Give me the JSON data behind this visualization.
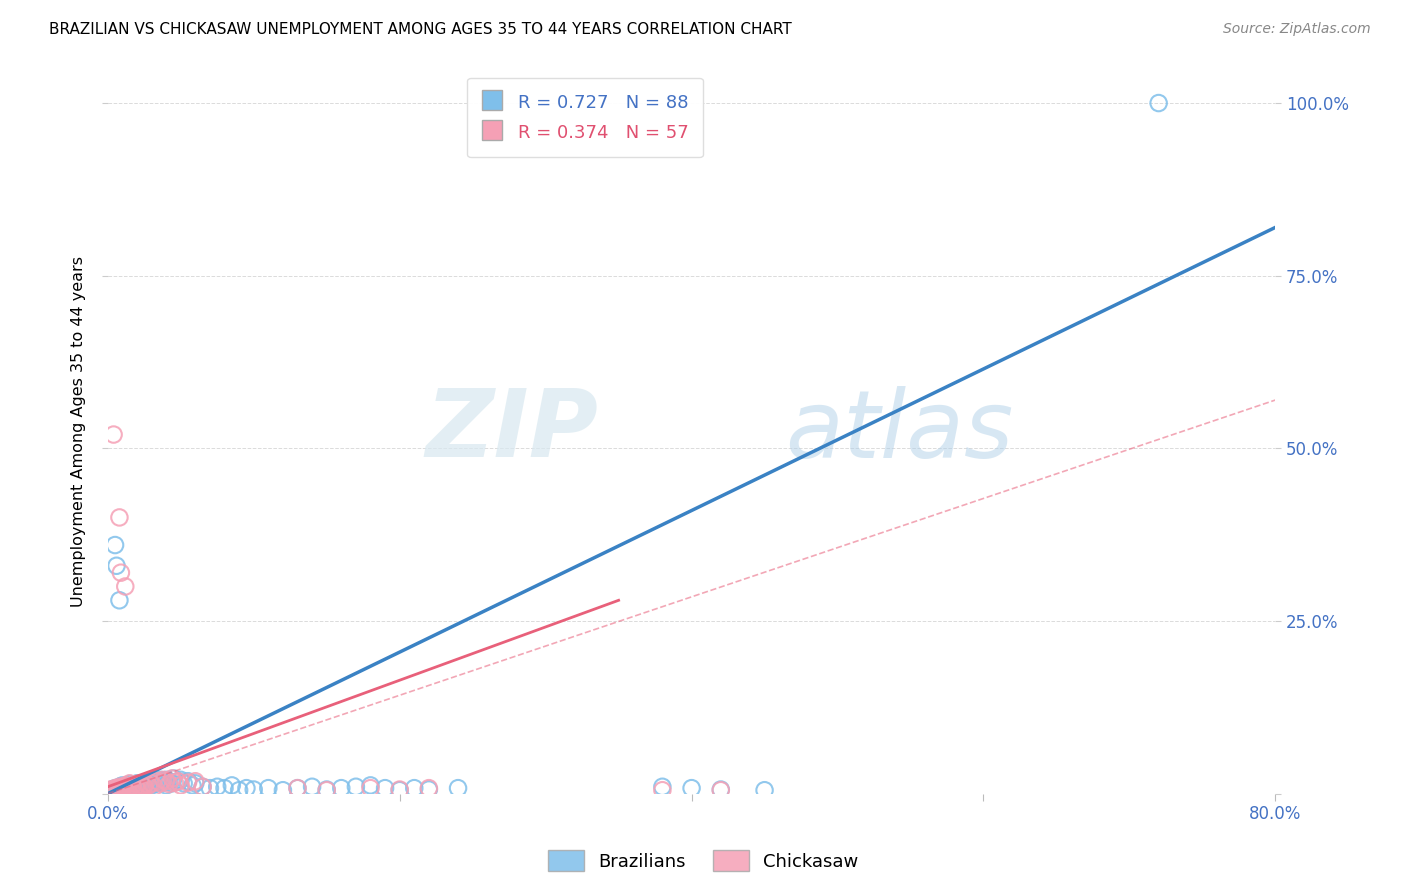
{
  "title": "BRAZILIAN VS CHICKASAW UNEMPLOYMENT AMONG AGES 35 TO 44 YEARS CORRELATION CHART",
  "source": "Source: ZipAtlas.com",
  "ylabel": "Unemployment Among Ages 35 to 44 years",
  "xlim": [
    0.0,
    0.8
  ],
  "ylim": [
    0.0,
    1.05
  ],
  "xtick_positions": [
    0.0,
    0.2,
    0.4,
    0.6,
    0.8
  ],
  "xticklabels": [
    "0.0%",
    "",
    "",
    "",
    "80.0%"
  ],
  "ytick_positions": [
    0.0,
    0.25,
    0.5,
    0.75,
    1.0
  ],
  "yticklabels_right": [
    "",
    "25.0%",
    "50.0%",
    "75.0%",
    "100.0%"
  ],
  "blue_color": "#7fbfea",
  "pink_color": "#f5a0b5",
  "blue_line_color": "#3a82c4",
  "pink_line_color": "#e8607a",
  "legend_R_blue": "R = 0.727",
  "legend_N_blue": "N = 88",
  "legend_R_pink": "R = 0.374",
  "legend_N_pink": "N = 57",
  "legend_text_blue": "#4472c4",
  "legend_text_pink": "#e05070",
  "axis_tick_color": "#4472c4",
  "watermark_zip": "ZIP",
  "watermark_atlas": "atlas",
  "blue_line": [
    [
      0.0,
      0.0
    ],
    [
      0.8,
      0.82
    ]
  ],
  "pink_line_solid": [
    [
      0.0,
      0.01
    ],
    [
      0.35,
      0.28
    ]
  ],
  "pink_line_dashed": [
    [
      0.0,
      0.0
    ],
    [
      0.8,
      0.57
    ]
  ],
  "blue_scatter": [
    [
      0.001,
      0.005
    ],
    [
      0.002,
      0.003
    ],
    [
      0.003,
      0.006
    ],
    [
      0.004,
      0.004
    ],
    [
      0.005,
      0.005
    ],
    [
      0.005,
      0.008
    ],
    [
      0.006,
      0.003
    ],
    [
      0.007,
      0.005
    ],
    [
      0.007,
      0.007
    ],
    [
      0.008,
      0.004
    ],
    [
      0.008,
      0.008
    ],
    [
      0.008,
      0.01
    ],
    [
      0.009,
      0.005
    ],
    [
      0.009,
      0.01
    ],
    [
      0.01,
      0.005
    ],
    [
      0.01,
      0.008
    ],
    [
      0.01,
      0.012
    ],
    [
      0.011,
      0.006
    ],
    [
      0.011,
      0.01
    ],
    [
      0.012,
      0.004
    ],
    [
      0.012,
      0.008
    ],
    [
      0.013,
      0.007
    ],
    [
      0.013,
      0.012
    ],
    [
      0.014,
      0.005
    ],
    [
      0.015,
      0.008
    ],
    [
      0.015,
      0.014
    ],
    [
      0.016,
      0.006
    ],
    [
      0.017,
      0.009
    ],
    [
      0.018,
      0.012
    ],
    [
      0.019,
      0.007
    ],
    [
      0.02,
      0.01
    ],
    [
      0.02,
      0.015
    ],
    [
      0.022,
      0.008
    ],
    [
      0.023,
      0.012
    ],
    [
      0.024,
      0.01
    ],
    [
      0.025,
      0.015
    ],
    [
      0.026,
      0.01
    ],
    [
      0.027,
      0.012
    ],
    [
      0.028,
      0.014
    ],
    [
      0.03,
      0.012
    ],
    [
      0.03,
      0.018
    ],
    [
      0.032,
      0.014
    ],
    [
      0.034,
      0.015
    ],
    [
      0.035,
      0.018
    ],
    [
      0.036,
      0.02
    ],
    [
      0.038,
      0.016
    ],
    [
      0.04,
      0.02
    ],
    [
      0.04,
      0.012
    ],
    [
      0.042,
      0.018
    ],
    [
      0.044,
      0.015
    ],
    [
      0.045,
      0.022
    ],
    [
      0.048,
      0.018
    ],
    [
      0.05,
      0.02
    ],
    [
      0.052,
      0.015
    ],
    [
      0.055,
      0.018
    ],
    [
      0.058,
      0.012
    ],
    [
      0.06,
      0.015
    ],
    [
      0.065,
      0.01
    ],
    [
      0.07,
      0.008
    ],
    [
      0.075,
      0.01
    ],
    [
      0.08,
      0.008
    ],
    [
      0.085,
      0.012
    ],
    [
      0.09,
      0.005
    ],
    [
      0.095,
      0.008
    ],
    [
      0.1,
      0.006
    ],
    [
      0.11,
      0.008
    ],
    [
      0.12,
      0.005
    ],
    [
      0.13,
      0.008
    ],
    [
      0.14,
      0.01
    ],
    [
      0.15,
      0.006
    ],
    [
      0.16,
      0.008
    ],
    [
      0.17,
      0.01
    ],
    [
      0.18,
      0.012
    ],
    [
      0.19,
      0.008
    ],
    [
      0.2,
      0.005
    ],
    [
      0.21,
      0.008
    ],
    [
      0.22,
      0.006
    ],
    [
      0.24,
      0.008
    ],
    [
      0.005,
      0.36
    ],
    [
      0.008,
      0.28
    ],
    [
      0.006,
      0.33
    ],
    [
      0.003,
      0.005
    ],
    [
      0.38,
      0.01
    ],
    [
      0.4,
      0.008
    ],
    [
      0.42,
      0.006
    ],
    [
      0.45,
      0.005
    ],
    [
      0.72,
      1.0
    ]
  ],
  "pink_scatter": [
    [
      0.001,
      0.004
    ],
    [
      0.002,
      0.006
    ],
    [
      0.003,
      0.003
    ],
    [
      0.004,
      0.006
    ],
    [
      0.005,
      0.004
    ],
    [
      0.005,
      0.008
    ],
    [
      0.006,
      0.005
    ],
    [
      0.007,
      0.008
    ],
    [
      0.008,
      0.005
    ],
    [
      0.008,
      0.01
    ],
    [
      0.009,
      0.006
    ],
    [
      0.01,
      0.004
    ],
    [
      0.01,
      0.008
    ],
    [
      0.011,
      0.01
    ],
    [
      0.012,
      0.006
    ],
    [
      0.012,
      0.012
    ],
    [
      0.013,
      0.008
    ],
    [
      0.014,
      0.005
    ],
    [
      0.015,
      0.01
    ],
    [
      0.015,
      0.015
    ],
    [
      0.016,
      0.008
    ],
    [
      0.017,
      0.012
    ],
    [
      0.018,
      0.006
    ],
    [
      0.019,
      0.01
    ],
    [
      0.02,
      0.008
    ],
    [
      0.02,
      0.014
    ],
    [
      0.022,
      0.01
    ],
    [
      0.023,
      0.008
    ],
    [
      0.024,
      0.012
    ],
    [
      0.025,
      0.01
    ],
    [
      0.026,
      0.015
    ],
    [
      0.028,
      0.012
    ],
    [
      0.03,
      0.015
    ],
    [
      0.032,
      0.01
    ],
    [
      0.034,
      0.018
    ],
    [
      0.036,
      0.015
    ],
    [
      0.038,
      0.02
    ],
    [
      0.04,
      0.018
    ],
    [
      0.042,
      0.014
    ],
    [
      0.044,
      0.022
    ],
    [
      0.046,
      0.016
    ],
    [
      0.048,
      0.018
    ],
    [
      0.05,
      0.012
    ],
    [
      0.055,
      0.016
    ],
    [
      0.06,
      0.018
    ],
    [
      0.065,
      0.01
    ],
    [
      0.004,
      0.52
    ],
    [
      0.008,
      0.4
    ],
    [
      0.009,
      0.32
    ],
    [
      0.012,
      0.3
    ],
    [
      0.13,
      0.008
    ],
    [
      0.15,
      0.005
    ],
    [
      0.18,
      0.008
    ],
    [
      0.2,
      0.006
    ],
    [
      0.22,
      0.008
    ],
    [
      0.38,
      0.005
    ],
    [
      0.42,
      0.005
    ]
  ]
}
